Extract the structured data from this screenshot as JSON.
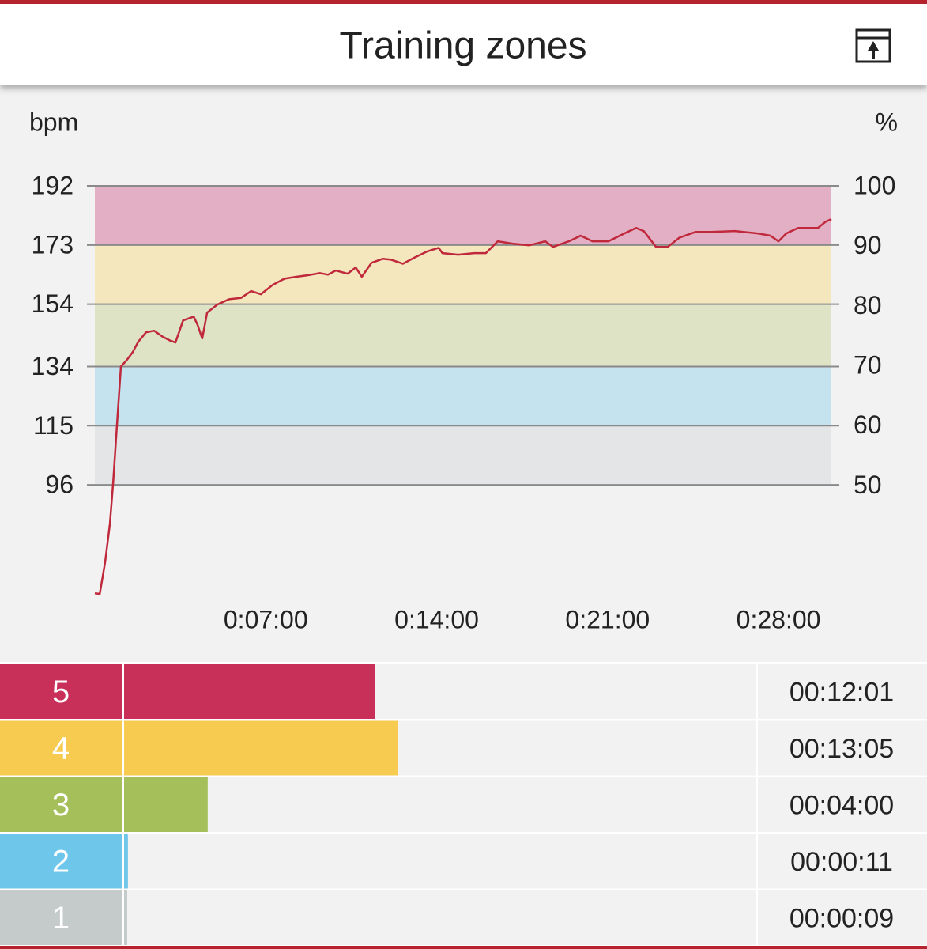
{
  "header": {
    "title": "Training zones"
  },
  "chart_data": [
    {
      "type": "line",
      "y_label": "bpm",
      "y2_label": "%",
      "x": [
        0,
        12,
        25,
        37,
        45,
        54,
        64,
        78,
        93,
        107,
        126,
        146,
        165,
        184,
        198,
        217,
        243,
        252,
        264,
        276,
        301,
        330,
        359,
        384,
        408,
        437,
        466,
        495,
        524,
        553,
        573,
        592,
        621,
        641,
        656,
        680,
        708,
        728,
        757,
        786,
        816,
        845,
        854,
        893,
        932,
        961,
        990,
        1029,
        1068,
        1107,
        1126,
        1165,
        1194,
        1223,
        1262,
        1301,
        1330,
        1349,
        1379,
        1408,
        1437,
        1476,
        1515,
        1573,
        1631,
        1660,
        1680,
        1699,
        1728,
        1777,
        1796,
        1810
      ],
      "series": [
        {
          "color": "#c0283b",
          "values": [
            61.2,
            61,
            71,
            83.6,
            96.8,
            114.5,
            134,
            136,
            138.6,
            142,
            145,
            145.5,
            143.7,
            142.4,
            141.7,
            148.8,
            150,
            147.5,
            143,
            151.3,
            153.9,
            155.6,
            156,
            158.2,
            157.2,
            160.2,
            162.2,
            162.8,
            163.3,
            164,
            163.5,
            164.8,
            163.8,
            165.8,
            162.8,
            167.3,
            168.6,
            168.3,
            167,
            169,
            170.9,
            172.1,
            170.4,
            169.9,
            170.4,
            170.4,
            174.2,
            173.4,
            172.9,
            174.2,
            172.4,
            174.2,
            176,
            174.2,
            174.2,
            176.7,
            178.5,
            177.5,
            172.4,
            172.4,
            175.4,
            177.2,
            177.2,
            177.5,
            176.7,
            176,
            174.2,
            176.7,
            178.5,
            178.5,
            180.5,
            181.3
          ]
        }
      ],
      "xlim": [
        0,
        1810
      ],
      "xticks": [
        {
          "value": 420,
          "label": "0:07:00"
        },
        {
          "value": 840,
          "label": "0:14:00"
        },
        {
          "value": 1260,
          "label": "0:21:00"
        },
        {
          "value": 1680,
          "label": "0:28:00"
        }
      ],
      "ylim": [
        61,
        192
      ],
      "yticks": [
        96,
        115,
        134,
        154,
        173,
        192
      ],
      "y2lim": [
        31.8,
        100
      ],
      "y2ticks": [
        50,
        60,
        70,
        80,
        90,
        100
      ],
      "band_colors": [
        "#e4e5e7",
        "#c5e3ef",
        "#dde3c4",
        "#f4e6bd",
        "#e3afc4"
      ],
      "grid": true
    },
    {
      "type": "bar",
      "orientation": "horizontal",
      "categories": [
        "5",
        "4",
        "3",
        "2",
        "1"
      ],
      "values": [
        721,
        785,
        240,
        11,
        9
      ],
      "value_labels": [
        "00:12:01",
        "00:13:05",
        "00:04:00",
        "00:00:11",
        "00:00:09"
      ],
      "colors": [
        "#c8305a",
        "#f7ca50",
        "#a5bf5a",
        "#6ec6ea",
        "#c5cbcb"
      ],
      "xlim": [
        0,
        1814
      ]
    }
  ]
}
